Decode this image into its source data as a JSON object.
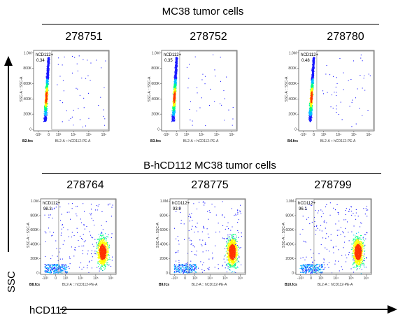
{
  "figure": {
    "y_axis_label": "SSC",
    "x_axis_label": "hCD112"
  },
  "sections": [
    {
      "title": "MC38 tumor cells"
    },
    {
      "title": "B-hCD112 MC38 tumor cells"
    }
  ],
  "colors": {
    "density": [
      "#1a1aff",
      "#00bfff",
      "#00ff80",
      "#ffff00",
      "#ff3300"
    ],
    "axis": "#000000"
  },
  "chart_data": [
    {
      "type": "scatter",
      "subtitle": "278751",
      "file": "B2.fcs",
      "gate_label": "hCD112+",
      "gate_percent": "0.34",
      "xlabel": "BL2-A :: hCD112-PE-A",
      "ylabel": "SSC-A :: SSC-A",
      "x_scale": "logicle",
      "x_ticks": [
        "-10³",
        "0",
        "10³",
        "10⁴",
        "10⁵",
        "10⁶"
      ],
      "y_ticks": [
        "0",
        "200K",
        "400K",
        "600K",
        "800K",
        "1.0M"
      ],
      "ylim": [
        0,
        1000000
      ],
      "population": "negative"
    },
    {
      "type": "scatter",
      "subtitle": "278752",
      "file": "B3.fcs",
      "gate_label": "hCD112+",
      "gate_percent": "0.35",
      "xlabel": "BL2-A :: hCD112-PE-A",
      "ylabel": "SSC-A :: SSC-A",
      "x_scale": "logicle",
      "x_ticks": [
        "-10³",
        "0",
        "10³",
        "10⁴",
        "10⁵",
        "10⁶"
      ],
      "y_ticks": [
        "0",
        "200K",
        "400K",
        "600K",
        "800K",
        "1.0M"
      ],
      "ylim": [
        0,
        1000000
      ],
      "population": "negative"
    },
    {
      "type": "scatter",
      "subtitle": "278780",
      "file": "B4.fcs",
      "gate_label": "hCD112+",
      "gate_percent": "0.48",
      "xlabel": "BL2-A :: hCD112-PE-A",
      "ylabel": "SSC-A :: SSC-A",
      "x_scale": "logicle",
      "x_ticks": [
        "-10³",
        "0",
        "10³",
        "10⁴",
        "10⁵",
        "10⁶"
      ],
      "y_ticks": [
        "0",
        "200K",
        "400K",
        "600K",
        "800K",
        "1.0M"
      ],
      "ylim": [
        0,
        1000000
      ],
      "population": "negative"
    },
    {
      "type": "scatter",
      "subtitle": "278764",
      "file": "B8.fcs",
      "gate_label": "hCD112+",
      "gate_percent": "98.3",
      "xlabel": "BL2-A :: hCD112-PE-A",
      "ylabel": "SSC-A :: SSC-A",
      "x_scale": "logicle",
      "x_ticks": [
        "-10³",
        "0",
        "10³",
        "10⁴",
        "10⁵",
        "10⁶"
      ],
      "y_ticks": [
        "0",
        "200K",
        "400K",
        "600K",
        "800K",
        "1.0M"
      ],
      "ylim": [
        0,
        1000000
      ],
      "population": "positive"
    },
    {
      "type": "scatter",
      "subtitle": "278775",
      "file": "B9.fcs",
      "gate_label": "hCD112+",
      "gate_percent": "93.9",
      "xlabel": "BL2-A :: hCD112-PE-A",
      "ylabel": "SSC-A :: SSC-A",
      "x_scale": "logicle",
      "x_ticks": [
        "-10³",
        "0",
        "10³",
        "10⁴",
        "10⁵",
        "10⁶"
      ],
      "y_ticks": [
        "0",
        "200K",
        "400K",
        "600K",
        "800K",
        "1.0M"
      ],
      "ylim": [
        0,
        1000000
      ],
      "population": "positive"
    },
    {
      "type": "scatter",
      "subtitle": "278799",
      "file": "B10.fcs",
      "gate_label": "hCD112+",
      "gate_percent": "96.1",
      "xlabel": "BL2-A :: hCD112-PE-A",
      "ylabel": "SSC-A :: SSC-A",
      "x_scale": "logicle",
      "x_ticks": [
        "-10³",
        "0",
        "10³",
        "10⁴",
        "10⁵",
        "10⁶"
      ],
      "y_ticks": [
        "0",
        "200K",
        "400K",
        "600K",
        "800K",
        "1.0M"
      ],
      "ylim": [
        0,
        1000000
      ],
      "population": "positive"
    }
  ]
}
